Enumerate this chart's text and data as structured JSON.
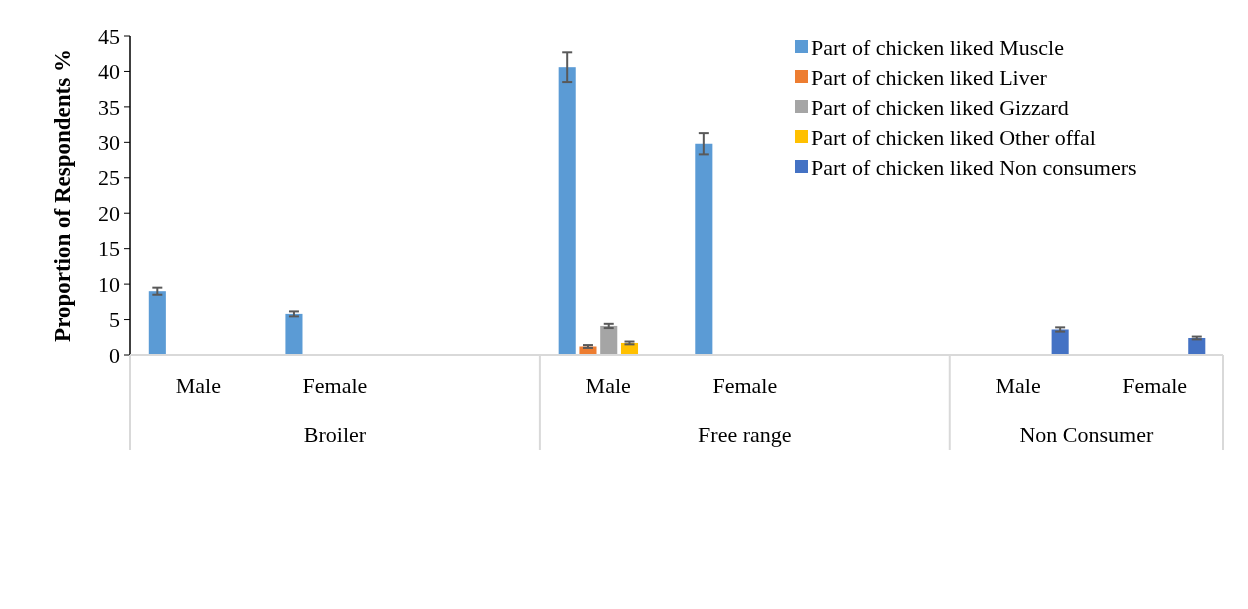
{
  "chart_data": {
    "type": "bar",
    "ylabel": "Proportion of Respondents %",
    "categories": [
      "Male",
      "Female",
      null,
      "Male",
      "Female",
      null,
      "Male",
      "Female"
    ],
    "annotations": [
      "Broiler",
      "Free range",
      "Non Consumer"
    ],
    "series": [
      {
        "name": "Part of chicken liked Muscle",
        "color": "#5b9bd5",
        "values": [
          9.0,
          5.8,
          null,
          40.6,
          29.8,
          null,
          null,
          null
        ],
        "errors": [
          0.5,
          0.35,
          null,
          2.1,
          1.5,
          null,
          null,
          null
        ]
      },
      {
        "name": "Part of chicken liked Liver",
        "color": "#ed7d31",
        "values": [
          null,
          null,
          null,
          1.2,
          0,
          null,
          null,
          null
        ],
        "errors": [
          null,
          null,
          null,
          0.2,
          null,
          null,
          null,
          null
        ]
      },
      {
        "name": "Part of chicken liked Gizzard",
        "color": "#a5a5a5",
        "values": [
          0,
          0,
          null,
          4.1,
          0,
          null,
          null,
          null
        ],
        "errors": [
          null,
          null,
          null,
          0.3,
          null,
          null,
          null,
          null
        ]
      },
      {
        "name": "Part of chicken liked Other offal",
        "color": "#ffc000",
        "values": [
          0,
          0,
          null,
          1.7,
          0,
          null,
          null,
          null
        ],
        "errors": [
          null,
          null,
          null,
          0.2,
          null,
          null,
          null,
          null
        ]
      },
      {
        "name": "Part of chicken liked Non consumers",
        "color": "#4472c4",
        "values": [
          null,
          null,
          null,
          null,
          null,
          null,
          3.6,
          2.4
        ],
        "errors": [
          null,
          null,
          null,
          null,
          null,
          null,
          0.3,
          0.2
        ]
      }
    ],
    "ylim": [
      0,
      45
    ],
    "yticks": [
      0,
      5,
      10,
      15,
      20,
      25,
      30,
      35,
      40,
      45
    ],
    "grid": false,
    "legend": "top right"
  }
}
